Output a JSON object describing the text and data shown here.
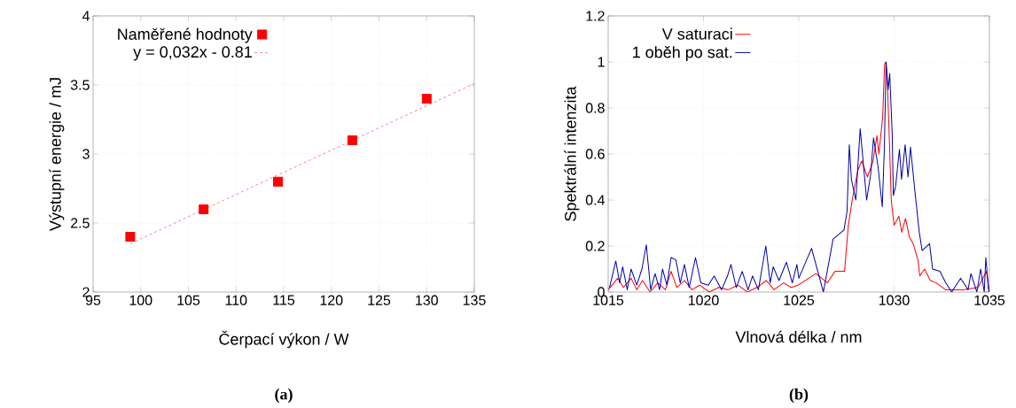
{
  "chart_data": [
    {
      "type": "scatter",
      "xlabel": "Čerpací výkon / W",
      "ylabel": "Výstupní energie / mJ",
      "annotations": [
        "(a)"
      ],
      "x": [
        98.9,
        106.6,
        114.4,
        122.2,
        130.0
      ],
      "series": [
        {
          "name": "Naměřené hodnoty",
          "color": "#ff0000",
          "marker": "square",
          "values": [
            2.4,
            2.6,
            2.8,
            3.1,
            3.4
          ]
        },
        {
          "name": "y = 0,032x - 0.81",
          "type": "line",
          "line_style": "dashed",
          "color": "#ff3030",
          "x": [
            98.9,
            135
          ],
          "values": [
            2.35,
            3.51
          ]
        }
      ],
      "xlim": [
        95,
        135
      ],
      "ylim": [
        2,
        4
      ],
      "xticks": [
        95,
        100,
        105,
        110,
        115,
        120,
        125,
        130,
        135
      ],
      "yticks": [
        2,
        2.5,
        3,
        3.5,
        4
      ],
      "grid": true,
      "legend": "top left"
    },
    {
      "type": "line",
      "xlabel": "Vlnová délka / nm",
      "ylabel": "Spektrální intenzita",
      "annotations": [
        "(b)"
      ],
      "series": [
        {
          "name": "V saturaci",
          "color": "#ff0000",
          "x": [
            1015.0,
            1015.5,
            1015.8,
            1016.2,
            1016.5,
            1016.8,
            1017.2,
            1017.6,
            1018.0,
            1018.3,
            1018.6,
            1019.0,
            1019.4,
            1019.8,
            1020.3,
            1020.8,
            1021.3,
            1021.8,
            1022.3,
            1022.8,
            1023.3,
            1023.7,
            1024.2,
            1024.6,
            1024.97,
            1025.9,
            1026.5,
            1026.9,
            1027.4,
            1027.6,
            1027.8,
            1028.1,
            1028.3,
            1028.6,
            1028.9,
            1029.1,
            1029.2,
            1029.4,
            1029.5,
            1029.57,
            1029.66,
            1029.74,
            1029.85,
            1030.0,
            1030.25,
            1030.4,
            1030.6,
            1030.8,
            1031.0,
            1031.25,
            1031.35,
            1031.6,
            1031.9,
            1032.2,
            1032.7,
            1033.6,
            1034.4,
            1034.85,
            1034.97
          ],
          "values": [
            0.01,
            0.06,
            0.02,
            0.06,
            0.01,
            0.05,
            0.0,
            0.04,
            0.01,
            0.09,
            0.02,
            0.05,
            0.01,
            0.03,
            0.0,
            0.02,
            0.01,
            0.03,
            0.0,
            0.02,
            0.05,
            0.01,
            0.04,
            0.02,
            0.03,
            0.08,
            0.04,
            0.09,
            0.09,
            0.29,
            0.4,
            0.53,
            0.57,
            0.5,
            0.57,
            0.68,
            0.6,
            0.76,
            0.99,
            1.0,
            0.88,
            0.69,
            0.4,
            0.29,
            0.33,
            0.26,
            0.32,
            0.24,
            0.21,
            0.14,
            0.07,
            0.1,
            0.05,
            0.04,
            0.01,
            0.01,
            0.02,
            0.09,
            0.01
          ]
        },
        {
          "name": "1 oběh po sat.",
          "color": "#0000aa",
          "x": [
            1015.07,
            1015.4,
            1015.6,
            1015.76,
            1016.0,
            1016.2,
            1016.5,
            1016.77,
            1017.0,
            1017.23,
            1017.46,
            1017.7,
            1017.85,
            1018.08,
            1018.3,
            1018.55,
            1018.78,
            1019.0,
            1019.25,
            1019.58,
            1019.86,
            1020.25,
            1020.56,
            1020.95,
            1021.26,
            1021.44,
            1021.72,
            1022.03,
            1022.34,
            1022.57,
            1022.88,
            1023.27,
            1023.5,
            1023.66,
            1023.96,
            1024.35,
            1024.66,
            1024.9,
            1025.0,
            1025.67,
            1026.29,
            1026.8,
            1027.37,
            1027.53,
            1027.65,
            1027.76,
            1027.99,
            1028.22,
            1028.56,
            1028.77,
            1028.92,
            1029.15,
            1029.38,
            1029.49,
            1029.58,
            1029.69,
            1029.77,
            1029.9,
            1029.96,
            1030.08,
            1030.28,
            1030.39,
            1030.58,
            1030.73,
            1030.86,
            1031.09,
            1031.32,
            1031.47,
            1031.86,
            1032.02,
            1032.4,
            1032.71,
            1033.02,
            1033.49,
            1033.88,
            1034.03,
            1034.34,
            1034.54,
            1034.73,
            1034.81,
            1034.97
          ],
          "values": [
            0.02,
            0.135,
            0.04,
            0.11,
            0.01,
            0.1,
            0.03,
            0.1,
            0.205,
            0.01,
            0.08,
            0.01,
            0.1,
            0.03,
            0.15,
            0.14,
            0.04,
            0.12,
            0.02,
            0.15,
            0.04,
            0.03,
            0.07,
            0.01,
            0.07,
            0.12,
            0.02,
            0.09,
            0.01,
            0.07,
            0.01,
            0.2,
            0.04,
            0.11,
            0.05,
            0.13,
            0.04,
            0.12,
            0.06,
            0.19,
            0.0,
            0.23,
            0.27,
            0.35,
            0.64,
            0.49,
            0.4,
            0.71,
            0.4,
            0.51,
            0.67,
            0.55,
            0.37,
            0.63,
            1.0,
            0.88,
            0.95,
            0.69,
            0.42,
            0.46,
            0.62,
            0.49,
            0.64,
            0.5,
            0.63,
            0.44,
            0.26,
            0.18,
            0.21,
            0.1,
            0.09,
            0.04,
            0.0,
            0.06,
            0.01,
            0.08,
            0.0,
            0.1,
            0.0,
            0.15,
            0.0
          ]
        }
      ],
      "xlim": [
        1015,
        1035
      ],
      "ylim": [
        0,
        1.2
      ],
      "xticks": [
        1015,
        1020,
        1025,
        1030,
        1035
      ],
      "yticks": [
        0,
        0.2,
        0.4,
        0.6,
        0.8,
        1,
        1.2
      ],
      "grid": true,
      "legend": "top left"
    }
  ]
}
